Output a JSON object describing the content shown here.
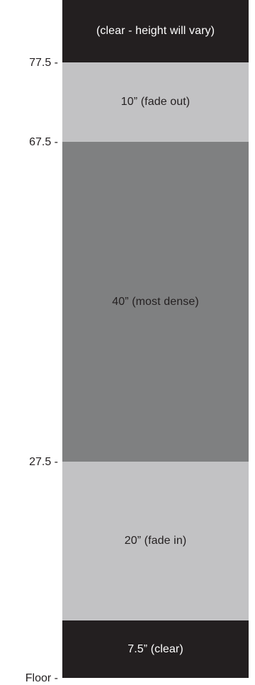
{
  "bands": {
    "top_clear": "(clear - height will vary)",
    "fade_out": "10”  (fade out)",
    "dense": "40”  (most dense)",
    "fade_in": "20”  (fade in)",
    "bottom_clear": "7.5” (clear)"
  },
  "markers": {
    "m77_5": "77.5 -",
    "m67_5": "67.5 -",
    "m27_5": "27.5 -",
    "floor": "Floor -"
  },
  "colors": {
    "dark": "#231f20",
    "light_gray": "#c2c2c4",
    "mid_gray": "#7f8081",
    "white": "#ffffff"
  }
}
